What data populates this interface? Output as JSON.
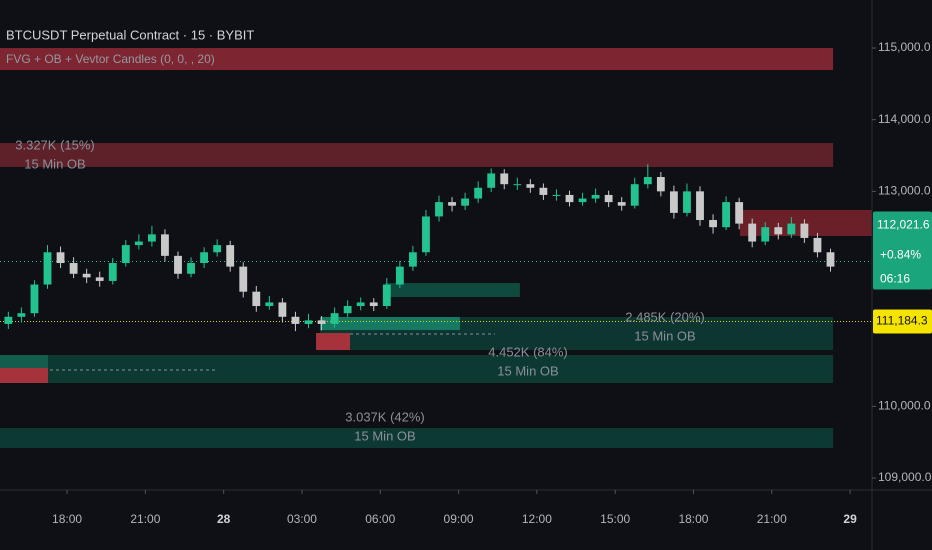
{
  "chart_data": {
    "type": "candlestick",
    "title": "BTCUSDT Perpetual Contract · 15 · BYBIT",
    "subtitle": "FVG + OB + Vevtor Candles (0, 0, , 20)",
    "up_color": "#22c38e",
    "down_color": "#c9c9c9",
    "xlim": [
      15.43,
      48.84
    ],
    "ylim": [
      108833,
      115670
    ],
    "xticks": [
      {
        "value": 18,
        "label": "18:00"
      },
      {
        "value": 21,
        "label": "21:00"
      },
      {
        "value": 24,
        "label": "28"
      },
      {
        "value": 27,
        "label": "03:00"
      },
      {
        "value": 30,
        "label": "06:00"
      },
      {
        "value": 33,
        "label": "09:00"
      },
      {
        "value": 36,
        "label": "12:00"
      },
      {
        "value": 39,
        "label": "15:00"
      },
      {
        "value": 42,
        "label": "18:00"
      },
      {
        "value": 45,
        "label": "21:00"
      },
      {
        "value": 48,
        "label": "29"
      }
    ],
    "yticks": [
      {
        "value": 109000,
        "label": "109,000.0"
      },
      {
        "value": 110000,
        "label": "110,000.0"
      },
      {
        "value": 113000,
        "label": "113,000.0"
      },
      {
        "value": 114000,
        "label": "114,000.0"
      },
      {
        "value": 115000,
        "label": "115,000.0"
      }
    ],
    "x": [
      15.75,
      16.25,
      16.75,
      17.25,
      17.75,
      18.25,
      18.75,
      19.25,
      19.75,
      20.25,
      20.75,
      21.25,
      21.75,
      22.25,
      22.75,
      23.25,
      23.75,
      24.25,
      24.75,
      25.25,
      25.75,
      26.25,
      26.75,
      27.25,
      27.75,
      28.25,
      28.75,
      29.25,
      29.75,
      30.25,
      30.75,
      31.25,
      31.75,
      32.25,
      32.75,
      33.25,
      33.75,
      34.25,
      34.75,
      35.25,
      35.75,
      36.25,
      36.75,
      37.25,
      37.75,
      38.25,
      38.75,
      39.25,
      39.75,
      40.25,
      40.75,
      41.25,
      41.75,
      42.25,
      42.75,
      43.25,
      43.75,
      44.25,
      44.75,
      45.25,
      45.75,
      46.25,
      46.75,
      47.25
    ],
    "candles": [
      [
        111150,
        111320,
        111080,
        111250
      ],
      [
        111250,
        111380,
        111170,
        111300
      ],
      [
        111300,
        111760,
        111250,
        111700
      ],
      [
        111700,
        112250,
        111640,
        112150
      ],
      [
        112150,
        112230,
        111930,
        112000
      ],
      [
        112000,
        112080,
        111790,
        111850
      ],
      [
        111850,
        111920,
        111720,
        111800
      ],
      [
        111800,
        111880,
        111670,
        111750
      ],
      [
        111750,
        112070,
        111700,
        112000
      ],
      [
        112000,
        112320,
        111950,
        112250
      ],
      [
        112250,
        112400,
        112190,
        112300
      ],
      [
        112300,
        112520,
        112230,
        112400
      ],
      [
        112400,
        112470,
        112020,
        112100
      ],
      [
        112100,
        112160,
        111780,
        111850
      ],
      [
        111850,
        112080,
        111800,
        112000
      ],
      [
        112000,
        112220,
        111930,
        112150
      ],
      [
        112150,
        112330,
        112090,
        112250
      ],
      [
        112250,
        112310,
        111880,
        111950
      ],
      [
        111950,
        112010,
        111520,
        111600
      ],
      [
        111600,
        111680,
        111320,
        111400
      ],
      [
        111400,
        111540,
        111350,
        111450
      ],
      [
        111450,
        111510,
        111170,
        111250
      ],
      [
        111250,
        111320,
        111050,
        111150
      ],
      [
        111150,
        111290,
        111090,
        111200
      ],
      [
        111200,
        111260,
        111060,
        111150
      ],
      [
        111150,
        111380,
        111100,
        111300
      ],
      [
        111300,
        111480,
        111250,
        111400
      ],
      [
        111400,
        111520,
        111340,
        111450
      ],
      [
        111450,
        111510,
        111330,
        111400
      ],
      [
        111400,
        111790,
        111360,
        111700
      ],
      [
        111700,
        112030,
        111650,
        111950
      ],
      [
        111950,
        112240,
        111890,
        112150
      ],
      [
        112150,
        112740,
        112100,
        112650
      ],
      [
        112650,
        112940,
        112580,
        112850
      ],
      [
        112850,
        112920,
        112720,
        112800
      ],
      [
        112800,
        112980,
        112740,
        112900
      ],
      [
        112900,
        113140,
        112840,
        113050
      ],
      [
        113050,
        113320,
        112990,
        113250
      ],
      [
        113250,
        113310,
        113030,
        113100
      ],
      [
        113100,
        113190,
        113020,
        113100
      ],
      [
        113100,
        113170,
        112980,
        113050
      ],
      [
        113050,
        113110,
        112880,
        112950
      ],
      [
        112950,
        113030,
        112870,
        112950
      ],
      [
        112950,
        113010,
        112790,
        112850
      ],
      [
        112850,
        112980,
        112800,
        112900
      ],
      [
        112900,
        113040,
        112840,
        112950
      ],
      [
        112950,
        113010,
        112780,
        112850
      ],
      [
        112850,
        112920,
        112730,
        112800
      ],
      [
        112800,
        113190,
        112760,
        113100
      ],
      [
        113100,
        113380,
        113040,
        113200
      ],
      [
        113200,
        113270,
        112930,
        113000
      ],
      [
        113000,
        113080,
        112620,
        112700
      ],
      [
        112700,
        113110,
        112650,
        113000
      ],
      [
        113000,
        113070,
        112520,
        112600
      ],
      [
        112600,
        112680,
        112410,
        112500
      ],
      [
        112500,
        112930,
        112460,
        112850
      ],
      [
        112850,
        112910,
        112470,
        112550
      ],
      [
        112550,
        112620,
        112220,
        112300
      ],
      [
        112300,
        112570,
        112250,
        112500
      ],
      [
        112500,
        112560,
        112330,
        112400
      ],
      [
        112400,
        112640,
        112350,
        112550
      ],
      [
        112550,
        112610,
        112280,
        112350
      ],
      [
        112350,
        112420,
        112080,
        112150
      ],
      [
        112150,
        112200,
        111880,
        111950
      ]
    ],
    "zones": [
      {
        "x": [
          15.43,
          47.35
        ],
        "y": [
          114693,
          115000
        ],
        "color": "#7d2530"
      },
      {
        "x": [
          15.43,
          47.35
        ],
        "y": [
          113340,
          113674
        ],
        "color": "#5e2129"
      },
      {
        "x": [
          43.78,
          48.84
        ],
        "y": [
          112377,
          112740
        ],
        "color": "#6b2029"
      },
      {
        "x": [
          30.18,
          35.35
        ],
        "y": [
          111526,
          111721
        ],
        "color": "#0f4a3e"
      },
      {
        "x": [
          27.69,
          47.35
        ],
        "y": [
          110786,
          111247
        ],
        "color": "#0c362f"
      },
      {
        "x": [
          27.69,
          33.05
        ],
        "y": [
          111065,
          111247
        ],
        "color": "#167a62"
      },
      {
        "x": [
          27.54,
          28.84
        ],
        "y": [
          110786,
          111023
        ],
        "color": "#a6333c"
      },
      {
        "x": [
          15.43,
          47.35
        ],
        "y": [
          110326,
          110716
        ],
        "color": "#0c3a32"
      },
      {
        "x": [
          15.43,
          17.27
        ],
        "y": [
          110535,
          110716
        ],
        "color": "#145c4c"
      },
      {
        "x": [
          15.43,
          17.27
        ],
        "y": [
          110326,
          110535
        ],
        "color": "#a6333c"
      },
      {
        "x": [
          15.43,
          47.35
        ],
        "y": [
          109419,
          109698
        ],
        "color": "#0c3a32"
      }
    ],
    "annotations": [
      {
        "text": "3.327K (15%)",
        "sub": "15 Min OB"
      },
      {
        "text": "2.485K (20%)",
        "sub": "15 Min OB"
      },
      {
        "text": "4.452K (84%)",
        "sub": "15 Min OB"
      },
      {
        "text": "3.037K (42%)",
        "sub": "15 Min OB"
      }
    ],
    "last_price": {
      "value": 112021.6,
      "label": "112,021.6"
    },
    "change": "+0.84%",
    "countdown": "06:16",
    "marker": {
      "value": 111184.3,
      "label": "111,184.3"
    }
  }
}
